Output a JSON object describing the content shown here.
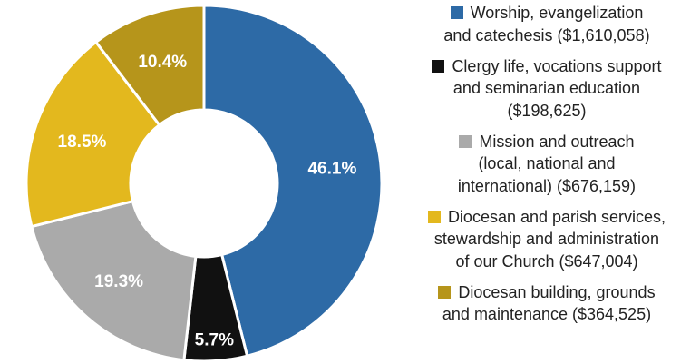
{
  "chart_data": {
    "type": "pie",
    "donut": true,
    "title": "",
    "slices": [
      {
        "label": "Worship, evangelization and catechesis ($1,610,058)",
        "label_lines": [
          "Worship, evangelization",
          "and catechesis ($1,610,058)"
        ],
        "amount": 1610058,
        "percent": 46.1,
        "percent_label": "46.1%",
        "color": "#2d6aa6"
      },
      {
        "label": "Clergy life, vocations support and seminarian education ($198,625)",
        "label_lines": [
          "Clergy life, vocations support",
          "and seminarian education",
          "($198,625)"
        ],
        "amount": 198625,
        "percent": 5.7,
        "percent_label": "5.7%",
        "color": "#111111"
      },
      {
        "label": "Mission and outreach (local, national and international) ($676,159)",
        "label_lines": [
          "Mission and outreach",
          "(local, national and",
          "international) ($676,159)"
        ],
        "amount": 676159,
        "percent": 19.3,
        "percent_label": "19.3%",
        "color": "#aaaaaa"
      },
      {
        "label": "Diocesan and parish services, stewardship and administration of our Church ($647,004)",
        "label_lines": [
          "Diocesan and parish services,",
          "stewardship and administration",
          "of our Church ($647,004)"
        ],
        "amount": 647004,
        "percent": 18.5,
        "percent_label": "18.5%",
        "color": "#e3b81e"
      },
      {
        "label": "Diocesan building, grounds and maintenance ($364,525)",
        "label_lines": [
          "Diocesan building, grounds",
          "and maintenance ($364,525)"
        ],
        "amount": 364525,
        "percent": 10.4,
        "percent_label": "10.4%",
        "color": "#b6951b"
      }
    ],
    "legend_position": "right"
  }
}
